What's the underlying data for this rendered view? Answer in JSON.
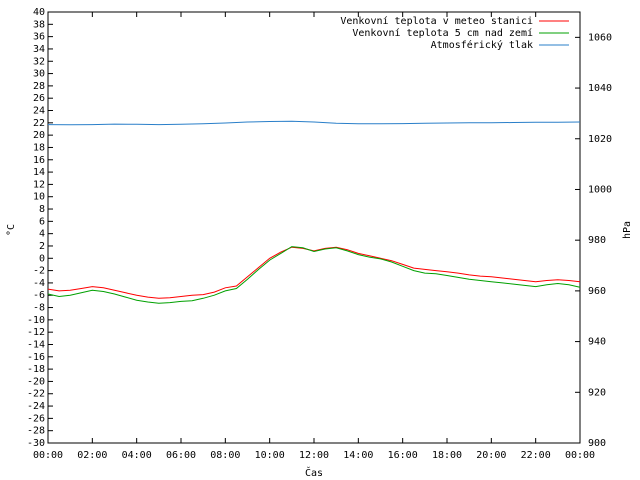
{
  "chart_data": {
    "type": "line",
    "title": "",
    "xlabel": "Čas",
    "ylabel": "°C",
    "y2label": "hPa",
    "xlim_hours": [
      0,
      24
    ],
    "ylim": [
      -30,
      40
    ],
    "y2lim": [
      900,
      1070
    ],
    "x_ticks": [
      "00:00",
      "02:00",
      "04:00",
      "06:00",
      "08:00",
      "10:00",
      "12:00",
      "14:00",
      "16:00",
      "18:00",
      "20:00",
      "22:00",
      "00:00"
    ],
    "y_ticks": [
      40,
      38,
      36,
      34,
      32,
      30,
      28,
      26,
      24,
      22,
      20,
      18,
      16,
      14,
      12,
      10,
      8,
      6,
      4,
      2,
      0,
      -2,
      -4,
      -6,
      -8,
      -10,
      -12,
      -14,
      -16,
      -18,
      -20,
      -22,
      -24,
      -26,
      -28,
      -30
    ],
    "y2_ticks": [
      1060,
      1040,
      1020,
      1000,
      980,
      960,
      940,
      920,
      900
    ],
    "legend_position": "top-right",
    "series": [
      {
        "name": "Venkovní teplota v meteo stanici",
        "color": "#ff0000",
        "axis": "left",
        "x": [
          0,
          0.5,
          1,
          1.5,
          2,
          2.5,
          3,
          3.5,
          4,
          4.5,
          5,
          5.5,
          6,
          6.5,
          7,
          7.5,
          8,
          8.5,
          9,
          9.5,
          10,
          10.5,
          11,
          11.5,
          12,
          12.5,
          13,
          13.5,
          14,
          14.5,
          15,
          15.5,
          16,
          16.5,
          17,
          17.5,
          18,
          18.5,
          19,
          19.5,
          20,
          20.5,
          21,
          21.5,
          22,
          22.5,
          23,
          23.5,
          24
        ],
        "values": [
          -5,
          -5.3,
          -5.2,
          -4.9,
          -4.6,
          -4.8,
          -5.2,
          -5.6,
          -6,
          -6.3,
          -6.5,
          -6.4,
          -6.2,
          -6,
          -5.9,
          -5.5,
          -4.8,
          -4.5,
          -3,
          -1.5,
          0,
          1,
          1.8,
          1.6,
          1.2,
          1.6,
          1.8,
          1.4,
          0.8,
          0.4,
          0,
          -0.4,
          -1,
          -1.6,
          -1.8,
          -2,
          -2.2,
          -2.4,
          -2.7,
          -2.9,
          -3,
          -3.2,
          -3.4,
          -3.6,
          -3.8,
          -3.6,
          -3.5,
          -3.6,
          -3.8
        ]
      },
      {
        "name": "Venkovní teplota 5 cm nad zemí",
        "color": "#00a000",
        "axis": "left",
        "x": [
          0,
          0.5,
          1,
          1.5,
          2,
          2.5,
          3,
          3.5,
          4,
          4.5,
          5,
          5.5,
          6,
          6.5,
          7,
          7.5,
          8,
          8.5,
          9,
          9.5,
          10,
          10.5,
          11,
          11.5,
          12,
          12.5,
          13,
          13.5,
          14,
          14.5,
          15,
          15.5,
          16,
          16.5,
          17,
          17.5,
          18,
          18.5,
          19,
          19.5,
          20,
          20.5,
          21,
          21.5,
          22,
          22.5,
          23,
          23.5,
          24
        ],
        "values": [
          -5.8,
          -6.2,
          -6,
          -5.6,
          -5.2,
          -5.4,
          -5.8,
          -6.3,
          -6.8,
          -7.1,
          -7.3,
          -7.2,
          -7,
          -6.9,
          -6.5,
          -6,
          -5.3,
          -4.9,
          -3.4,
          -1.8,
          -0.3,
          0.8,
          1.9,
          1.7,
          1.1,
          1.5,
          1.7,
          1.2,
          0.6,
          0.2,
          -0.1,
          -0.6,
          -1.3,
          -2,
          -2.4,
          -2.5,
          -2.8,
          -3.1,
          -3.4,
          -3.6,
          -3.8,
          -4,
          -4.2,
          -4.4,
          -4.6,
          -4.3,
          -4.1,
          -4.3,
          -4.7
        ]
      },
      {
        "name": "Atmosférický tlak",
        "color": "#2a7fc9",
        "axis": "right",
        "x": [
          0,
          1,
          2,
          3,
          4,
          5,
          6,
          7,
          8,
          9,
          10,
          11,
          12,
          13,
          14,
          15,
          16,
          17,
          18,
          19,
          20,
          21,
          22,
          23,
          24
        ],
        "values": [
          1025.6,
          1025.5,
          1025.6,
          1025.8,
          1025.7,
          1025.6,
          1025.7,
          1025.9,
          1026.2,
          1026.6,
          1026.8,
          1026.9,
          1026.6,
          1026.1,
          1025.9,
          1025.9,
          1026.0,
          1026.1,
          1026.2,
          1026.3,
          1026.3,
          1026.4,
          1026.5,
          1026.5,
          1026.6
        ]
      }
    ]
  }
}
